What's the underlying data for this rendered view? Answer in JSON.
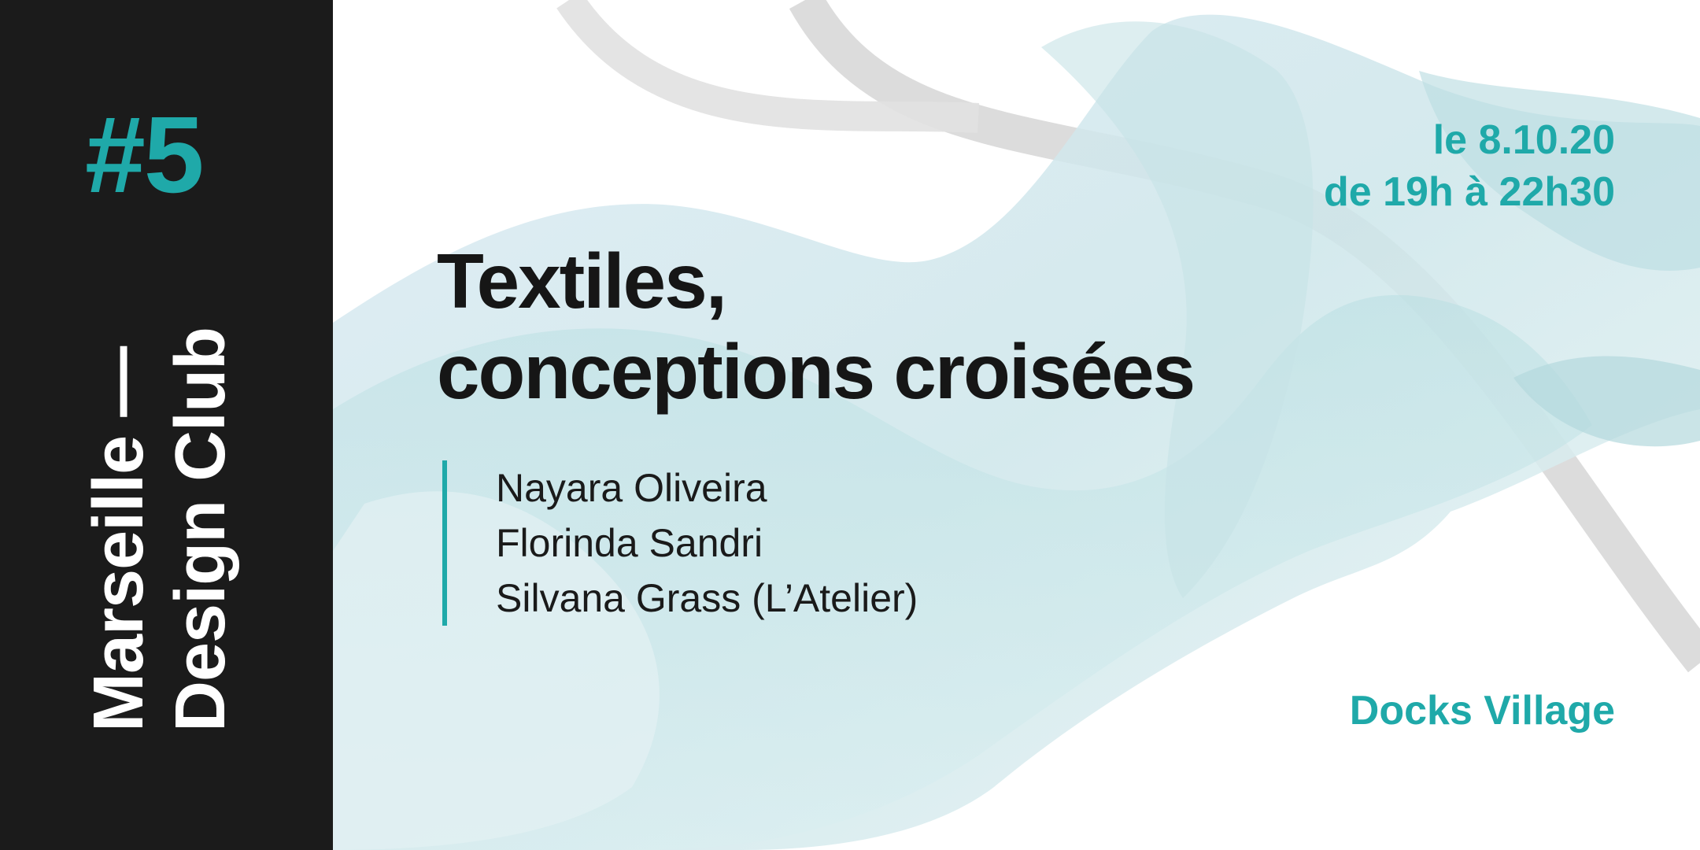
{
  "sidebar": {
    "edition": "#5",
    "club_line1": "Marseille —",
    "club_line2": "Design Club"
  },
  "event": {
    "title_line1": "Textiles,",
    "title_line2": "conceptions croisées",
    "speakers": [
      "Nayara Oliveira",
      "Florinda Sandri",
      "Silvana Grass (L’Atelier)"
    ],
    "date": "le 8.10.20",
    "time": "de 19h à 22h30",
    "venue": "Docks Village"
  },
  "colors": {
    "accent": "#1fa9a9",
    "sidebar_bg": "#1b1b1b",
    "text_dark": "#161616"
  }
}
